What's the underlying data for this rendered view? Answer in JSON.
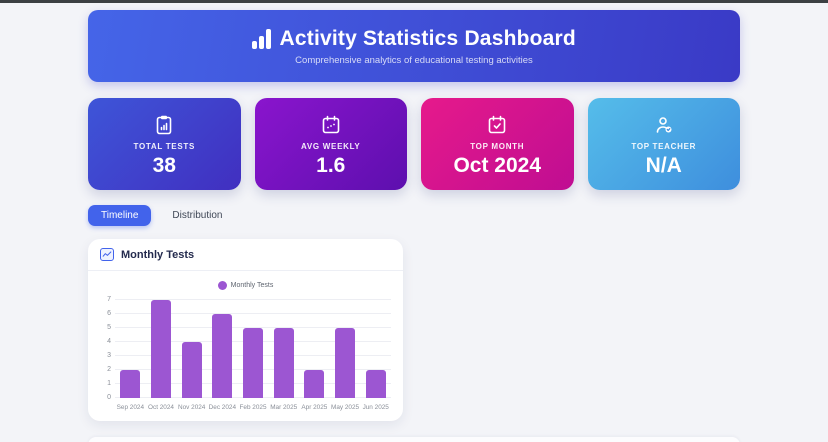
{
  "header": {
    "title": "Activity Statistics Dashboard",
    "subtitle": "Comprehensive analytics of educational testing activities",
    "gradient": {
      "dir": "100deg",
      "from": "#4565e8",
      "to": "#3a3ac6"
    }
  },
  "stats": [
    {
      "label": "TOTAL TESTS",
      "value": "38",
      "icon": "clipboard-chart-icon",
      "gradient": {
        "dir": "135deg",
        "from": "#3e55d8",
        "to": "#412fc0"
      }
    },
    {
      "label": "AVG WEEKLY",
      "value": "1.6",
      "icon": "calendar-trend-icon",
      "gradient": {
        "dir": "135deg",
        "from": "#8a15cd",
        "to": "#5d0fae"
      }
    },
    {
      "label": "TOP MONTH",
      "value": "Oct 2024",
      "icon": "calendar-check-icon",
      "gradient": {
        "dir": "135deg",
        "from": "#e61a8b",
        "to": "#bf0d92"
      }
    },
    {
      "label": "TOP TEACHER",
      "value": "N/A",
      "icon": "person-check-icon",
      "gradient": {
        "dir": "135deg",
        "from": "#55bdea",
        "to": "#3e8edd"
      }
    }
  ],
  "tabs": [
    {
      "label": "Timeline",
      "active": true
    },
    {
      "label": "Distribution",
      "active": false
    }
  ],
  "chart_card": {
    "title": "Monthly Tests",
    "icon": "chart-line-icon"
  },
  "chart_data": {
    "type": "bar",
    "title": "Monthly Tests",
    "categories": [
      "Sep 2024",
      "Oct 2024",
      "Nov 2024",
      "Dec 2024",
      "Feb 2025",
      "Mar 2025",
      "Apr 2025",
      "May 2025",
      "Jun 2025"
    ],
    "values": [
      2,
      7,
      4,
      6,
      5,
      5,
      2,
      5,
      2
    ],
    "xlabel": "",
    "ylabel": "",
    "ylim": [
      0,
      7
    ],
    "yticks": [
      0,
      1,
      2,
      3,
      4,
      5,
      6,
      7
    ],
    "bar_color": "#9c56d2",
    "grid": true,
    "legend": [
      {
        "label": "Monthly Tests",
        "color": "#9c56d2"
      }
    ],
    "legend_position": "top"
  },
  "colors": {
    "page_background": "#f3f4f8",
    "accent": "#4263eb",
    "bar_purple": "#9c56d2",
    "card_title_text": "#242b4e"
  }
}
